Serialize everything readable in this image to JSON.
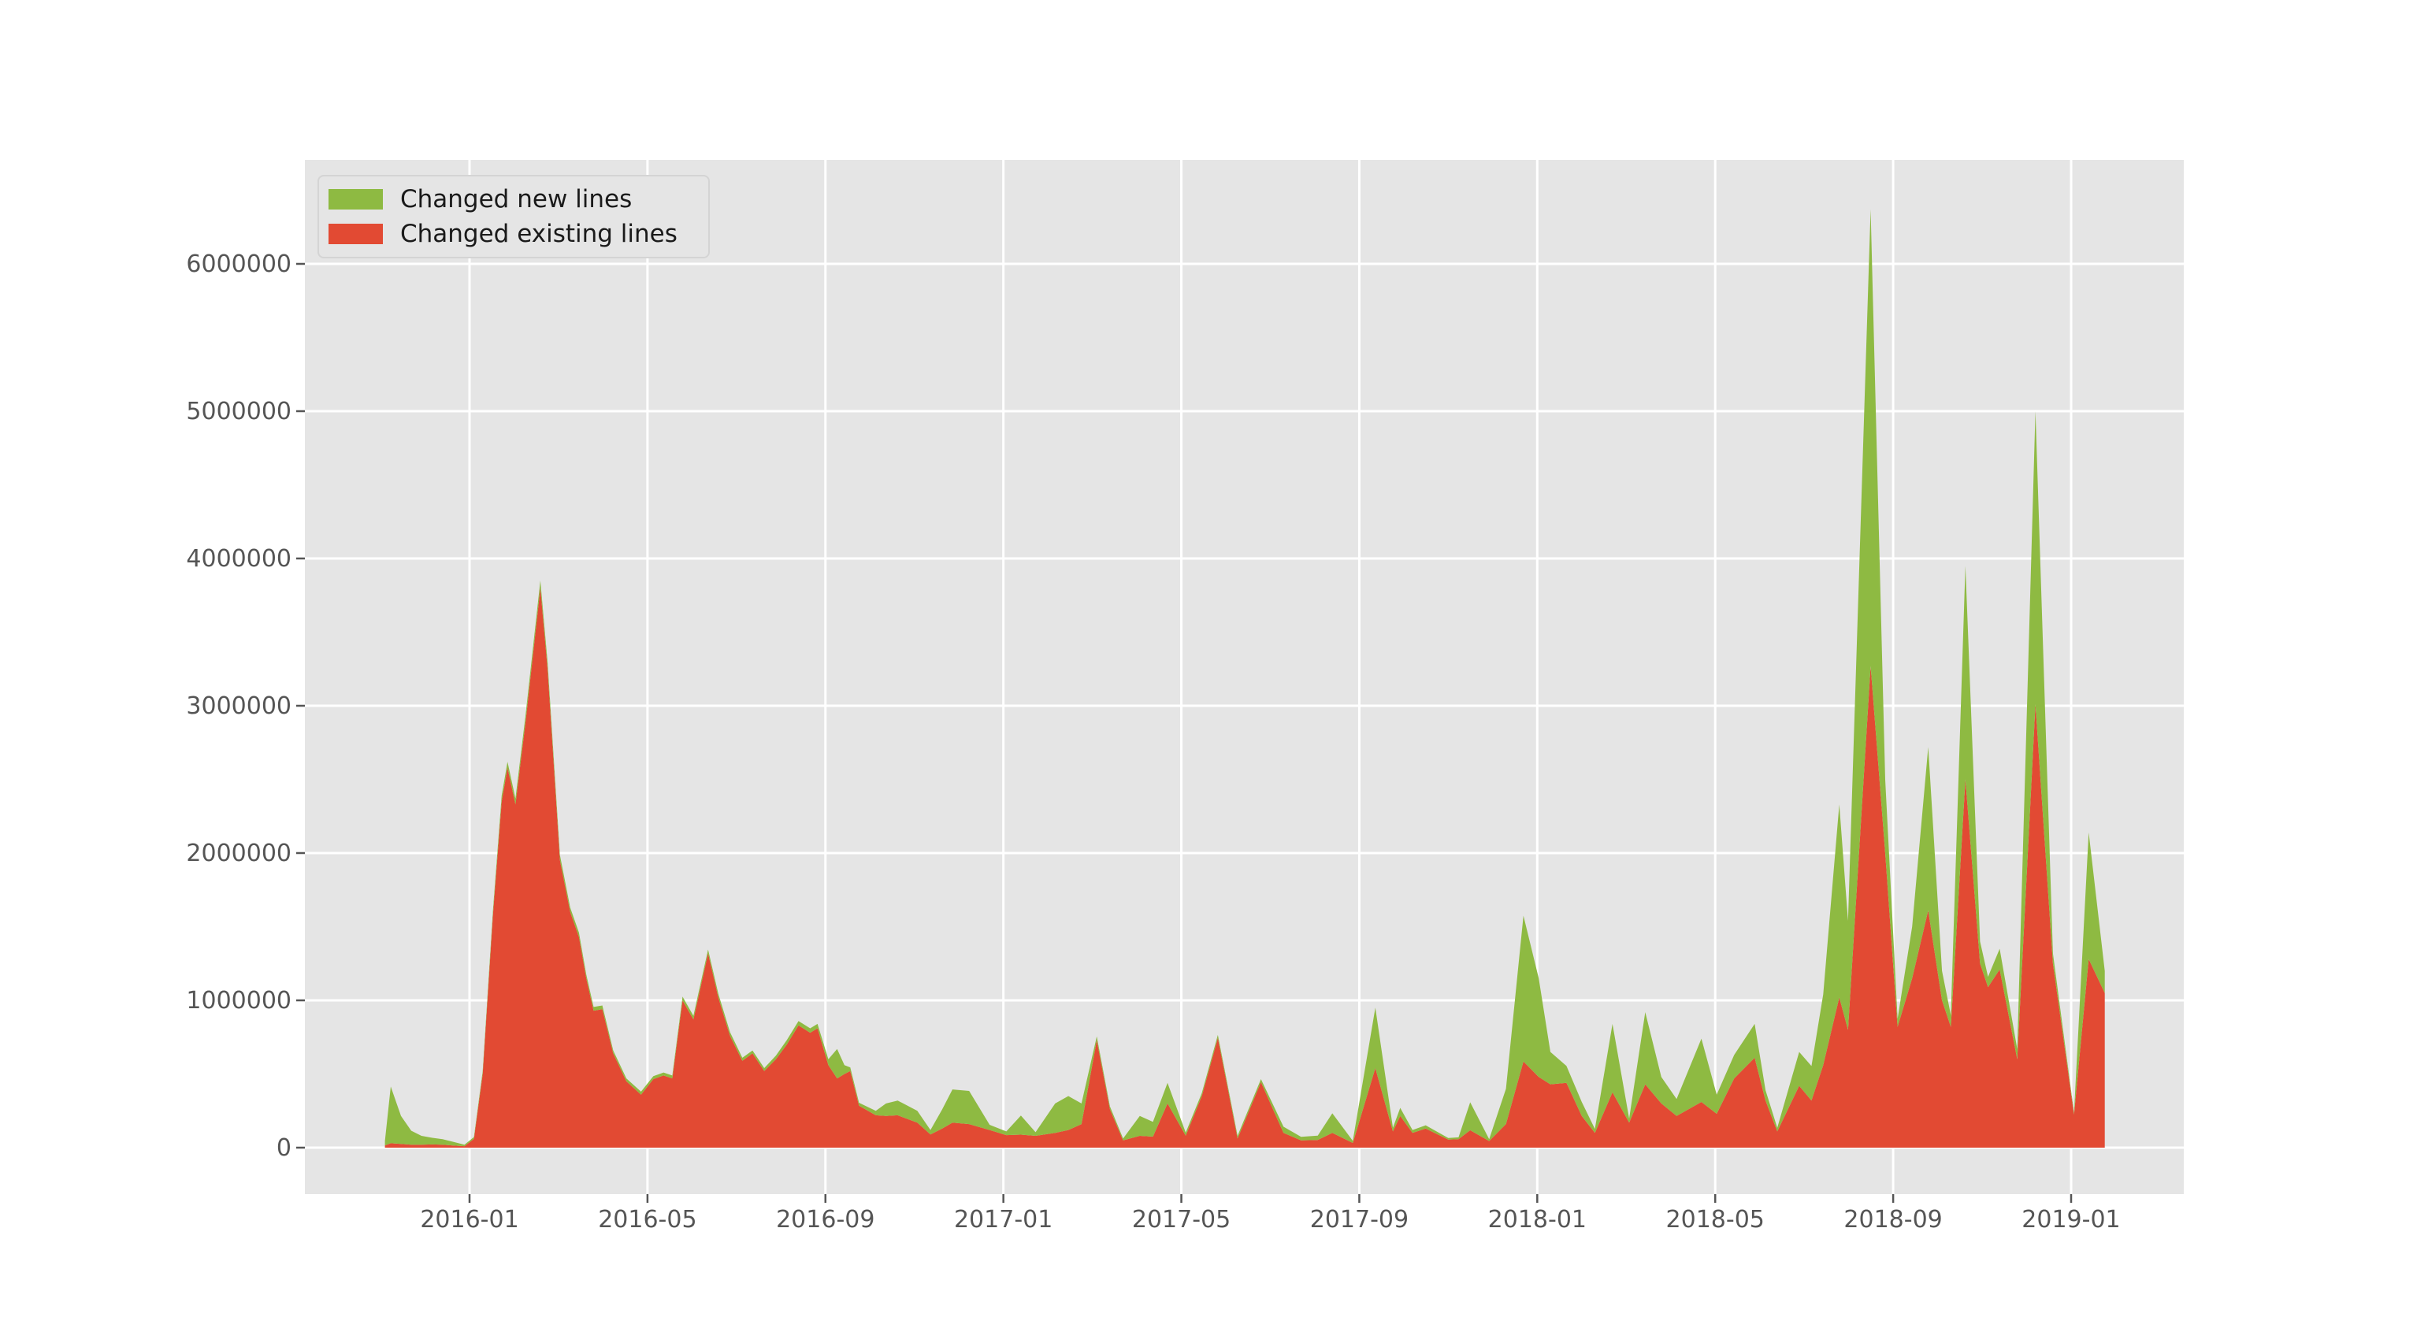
{
  "figure": {
    "background_color": "#ffffff",
    "plot_background_color": "#e5e5e5",
    "grid_color": "#ffffff",
    "tick_color": "#555555",
    "tick_label_color": "#555555"
  },
  "legend": {
    "items": [
      {
        "label": "Changed new lines",
        "color": "#8eba42"
      },
      {
        "label": "Changed existing lines",
        "color": "#e24a33"
      }
    ]
  },
  "chart_data": {
    "type": "area",
    "stacked": true,
    "title": "",
    "xlabel": "",
    "ylabel": "",
    "grid": true,
    "legend_position": "upper left",
    "x_axis": {
      "tick_labels": [
        "2016-01",
        "2016-05",
        "2016-09",
        "2017-01",
        "2017-05",
        "2017-09",
        "2018-01",
        "2018-05",
        "2018-09",
        "2019-01"
      ],
      "tick_month_offsets": [
        0,
        4,
        8,
        12,
        16,
        20,
        24,
        28,
        32,
        36
      ]
    },
    "y_axis": {
      "tick_labels": [
        "0",
        "1000000",
        "2000000",
        "3000000",
        "4000000",
        "5000000",
        "6000000"
      ],
      "tick_values": [
        0,
        1000000,
        2000000,
        3000000,
        4000000,
        5000000,
        6000000
      ]
    },
    "ylim": [
      -320000,
      6710000
    ],
    "series": [
      {
        "name": "Changed existing lines",
        "color": "#e24a33",
        "stack_order": "bottom"
      },
      {
        "name": "Changed new lines",
        "color": "#8eba42",
        "stack_order": "top"
      }
    ],
    "point_columns": [
      "date",
      "changed_existing_lines",
      "changed_new_lines"
    ],
    "points": [
      [
        "2015-11-04",
        15000,
        30000
      ],
      [
        "2015-11-08",
        30000,
        385000
      ],
      [
        "2015-11-15",
        25000,
        190000
      ],
      [
        "2015-11-22",
        20000,
        95000
      ],
      [
        "2015-11-29",
        20000,
        60000
      ],
      [
        "2015-12-06",
        22000,
        45000
      ],
      [
        "2015-12-13",
        20000,
        38000
      ],
      [
        "2015-12-20",
        15000,
        25000
      ],
      [
        "2015-12-28",
        10000,
        10000
      ],
      [
        "2016-01-04",
        60000,
        12000
      ],
      [
        "2016-01-10",
        500000,
        20000
      ],
      [
        "2016-01-17",
        1580000,
        30000
      ],
      [
        "2016-01-23",
        2350000,
        40000
      ],
      [
        "2016-01-27",
        2580000,
        40000
      ],
      [
        "2016-02-02",
        2330000,
        40000
      ],
      [
        "2016-02-09",
        2900000,
        45000
      ],
      [
        "2016-02-19",
        3800000,
        50000
      ],
      [
        "2016-02-24",
        3250000,
        45000
      ],
      [
        "2016-03-02",
        1950000,
        35000
      ],
      [
        "2016-03-09",
        1600000,
        30000
      ],
      [
        "2016-03-15",
        1430000,
        30000
      ],
      [
        "2016-03-20",
        1150000,
        25000
      ],
      [
        "2016-03-25",
        930000,
        25000
      ],
      [
        "2016-03-31",
        940000,
        25000
      ],
      [
        "2016-04-08",
        640000,
        20000
      ],
      [
        "2016-04-17",
        450000,
        20000
      ],
      [
        "2016-04-27",
        360000,
        20000
      ],
      [
        "2016-05-05",
        465000,
        20000
      ],
      [
        "2016-05-12",
        490000,
        20000
      ],
      [
        "2016-05-18",
        470000,
        20000
      ],
      [
        "2016-05-25",
        1000000,
        25000
      ],
      [
        "2016-06-02",
        870000,
        25000
      ],
      [
        "2016-06-12",
        1320000,
        25000
      ],
      [
        "2016-06-19",
        1020000,
        25000
      ],
      [
        "2016-06-27",
        760000,
        25000
      ],
      [
        "2016-07-05",
        590000,
        20000
      ],
      [
        "2016-07-12",
        640000,
        20000
      ],
      [
        "2016-07-20",
        520000,
        20000
      ],
      [
        "2016-07-28",
        600000,
        25000
      ],
      [
        "2016-08-05",
        700000,
        30000
      ],
      [
        "2016-08-13",
        830000,
        30000
      ],
      [
        "2016-08-21",
        780000,
        30000
      ],
      [
        "2016-08-26",
        810000,
        30000
      ],
      [
        "2016-09-03",
        560000,
        40000
      ],
      [
        "2016-09-09",
        470000,
        200000
      ],
      [
        "2016-09-14",
        500000,
        60000
      ],
      [
        "2016-09-18",
        520000,
        25000
      ],
      [
        "2016-09-24",
        285000,
        20000
      ],
      [
        "2016-10-05",
        220000,
        30000
      ],
      [
        "2016-10-12",
        215000,
        85000
      ],
      [
        "2016-10-20",
        220000,
        100000
      ],
      [
        "2016-11-03",
        170000,
        80000
      ],
      [
        "2016-11-12",
        90000,
        30000
      ],
      [
        "2016-11-20",
        130000,
        130000
      ],
      [
        "2016-11-27",
        170000,
        225000
      ],
      [
        "2016-12-08",
        160000,
        225000
      ],
      [
        "2016-12-22",
        120000,
        35000
      ],
      [
        "2017-01-03",
        85000,
        25000
      ],
      [
        "2017-01-13",
        88000,
        130000
      ],
      [
        "2017-01-23",
        80000,
        25000
      ],
      [
        "2017-02-06",
        100000,
        200000
      ],
      [
        "2017-02-15",
        120000,
        230000
      ],
      [
        "2017-02-24",
        160000,
        140000
      ],
      [
        "2017-03-04",
        730000,
        25000
      ],
      [
        "2017-03-13",
        260000,
        20000
      ],
      [
        "2017-03-22",
        50000,
        12000
      ],
      [
        "2017-04-03",
        80000,
        135000
      ],
      [
        "2017-04-12",
        75000,
        100000
      ],
      [
        "2017-04-22",
        300000,
        140000
      ],
      [
        "2017-05-04",
        82000,
        20000
      ],
      [
        "2017-05-15",
        350000,
        20000
      ],
      [
        "2017-05-26",
        745000,
        20000
      ],
      [
        "2017-06-09",
        62000,
        18000
      ],
      [
        "2017-06-25",
        445000,
        20000
      ],
      [
        "2017-07-10",
        100000,
        42000
      ],
      [
        "2017-07-22",
        50000,
        24000
      ],
      [
        "2017-08-03",
        52000,
        30000
      ],
      [
        "2017-08-13",
        100000,
        133000
      ],
      [
        "2017-08-27",
        32000,
        14000
      ],
      [
        "2017-09-12",
        540000,
        410000
      ],
      [
        "2017-09-24",
        110000,
        25000
      ],
      [
        "2017-09-29",
        215000,
        55000
      ],
      [
        "2017-10-07",
        100000,
        20000
      ],
      [
        "2017-10-16",
        130000,
        22000
      ],
      [
        "2017-11-01",
        55000,
        10000
      ],
      [
        "2017-11-08",
        58000,
        12000
      ],
      [
        "2017-11-16",
        118000,
        190000
      ],
      [
        "2017-11-29",
        45000,
        12000
      ],
      [
        "2017-12-10",
        160000,
        240000
      ],
      [
        "2017-12-22",
        585000,
        990000
      ],
      [
        "2018-01-02",
        480000,
        670000
      ],
      [
        "2018-01-10",
        430000,
        220000
      ],
      [
        "2018-01-21",
        440000,
        115000
      ],
      [
        "2018-02-01",
        215000,
        95000
      ],
      [
        "2018-02-10",
        100000,
        27000
      ],
      [
        "2018-02-22",
        376000,
        464000
      ],
      [
        "2018-03-03",
        170000,
        28000
      ],
      [
        "2018-03-14",
        430000,
        490000
      ],
      [
        "2018-03-25",
        300000,
        180000
      ],
      [
        "2018-04-05",
        215000,
        115000
      ],
      [
        "2018-04-22",
        310000,
        430000
      ],
      [
        "2018-05-02",
        230000,
        130000
      ],
      [
        "2018-05-14",
        470000,
        160000
      ],
      [
        "2018-05-28",
        610000,
        230000
      ],
      [
        "2018-06-05",
        320000,
        70000
      ],
      [
        "2018-06-13",
        110000,
        25000
      ],
      [
        "2018-06-28",
        420000,
        230000
      ],
      [
        "2018-07-06",
        320000,
        234000
      ],
      [
        "2018-07-14",
        560000,
        480000
      ],
      [
        "2018-07-25",
        1020000,
        1310000
      ],
      [
        "2018-07-31",
        800000,
        740000
      ],
      [
        "2018-08-16",
        3270000,
        3100000
      ],
      [
        "2018-08-26",
        2000000,
        500000
      ],
      [
        "2018-09-04",
        820000,
        55000
      ],
      [
        "2018-09-14",
        1150000,
        350000
      ],
      [
        "2018-09-25",
        1610000,
        1110000
      ],
      [
        "2018-10-04",
        1000000,
        200000
      ],
      [
        "2018-10-10",
        820000,
        80000
      ],
      [
        "2018-10-20",
        2500000,
        1450000
      ],
      [
        "2018-10-30",
        1250000,
        150000
      ],
      [
        "2018-11-05",
        1090000,
        70000
      ],
      [
        "2018-11-13",
        1210000,
        140000
      ],
      [
        "2018-11-25",
        600000,
        70000
      ],
      [
        "2018-12-07",
        3010000,
        1990000
      ],
      [
        "2018-12-19",
        1250000,
        70000
      ],
      [
        "2019-01-03",
        225000,
        12000
      ],
      [
        "2019-01-13",
        1280000,
        860000
      ],
      [
        "2019-01-24",
        1050000,
        150000
      ]
    ]
  }
}
